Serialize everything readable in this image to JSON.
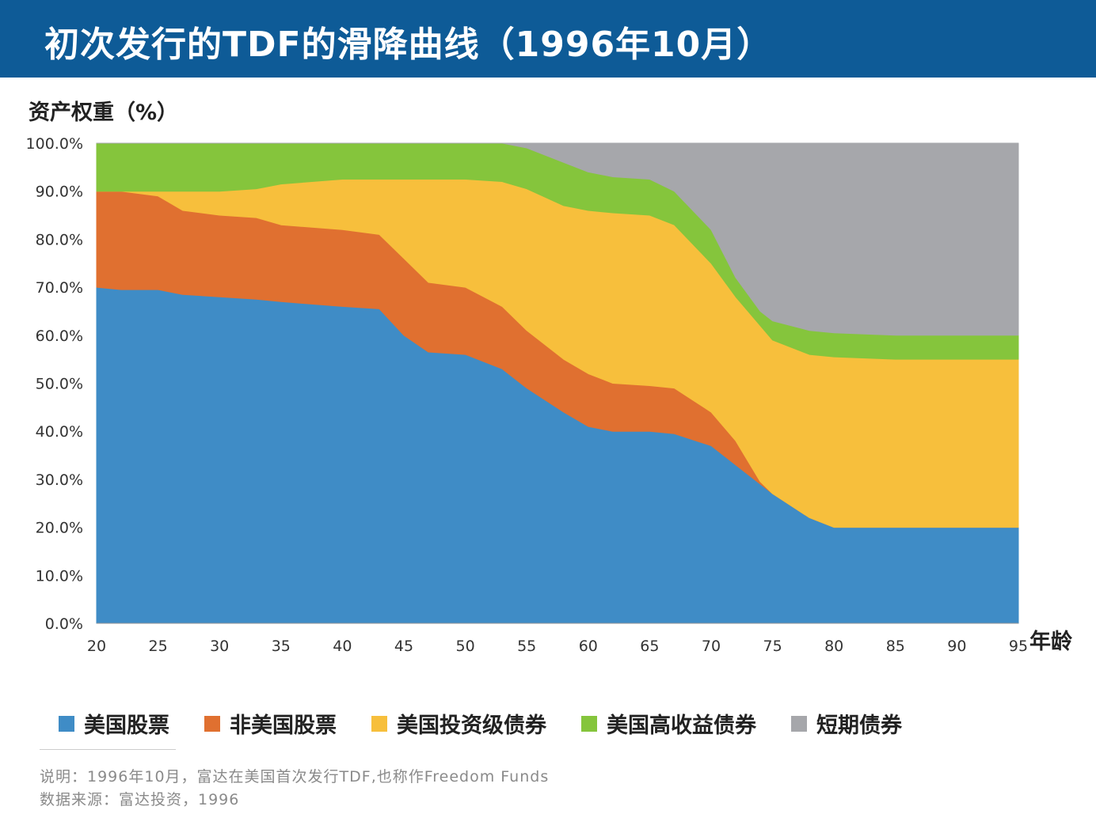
{
  "header": {
    "title": "初次发行的TDF的滑降曲线（1996年10月）"
  },
  "footnotes": {
    "note": "说明：1996年10月，富达在美国首次发行TDF,也称作Freedom Funds",
    "source": "数据来源：富达投资，1996"
  },
  "chart_data": {
    "type": "area",
    "stacked": true,
    "ylabel": "资产权重（%）",
    "xlabel": "年龄",
    "ylim": [
      0,
      100
    ],
    "xlim": [
      20,
      95
    ],
    "yticks": [
      "0.0%",
      "10.0%",
      "20.0%",
      "30.0%",
      "40.0%",
      "50.0%",
      "60.0%",
      "70.0%",
      "80.0%",
      "90.0%",
      "100.0%"
    ],
    "xticks": [
      "20",
      "25",
      "30",
      "35",
      "40",
      "45",
      "50",
      "55",
      "60",
      "65",
      "70",
      "75",
      "80",
      "85",
      "90",
      "95"
    ],
    "legend_position": "bottom",
    "x": [
      20,
      22,
      25,
      27,
      30,
      33,
      35,
      40,
      43,
      45,
      47,
      50,
      53,
      55,
      58,
      60,
      62,
      65,
      67,
      70,
      72,
      74,
      75,
      78,
      80,
      85,
      90,
      95
    ],
    "series": [
      {
        "name": "美国股票",
        "color": "#3f8cc6",
        "values": [
          70,
          69.5,
          69.5,
          68.5,
          68,
          67.5,
          67,
          66,
          65.5,
          60,
          56.5,
          56,
          53,
          49,
          44,
          41,
          40,
          40,
          39.5,
          37,
          33,
          29,
          27,
          22,
          20,
          20,
          20,
          20
        ]
      },
      {
        "name": "非美国股票",
        "color": "#e07030",
        "values": [
          20,
          20.5,
          19.5,
          17.5,
          17,
          17,
          16,
          16,
          15.5,
          16,
          14.5,
          14,
          13,
          12,
          11,
          11,
          10,
          9.5,
          9.5,
          7,
          5,
          0.5,
          0,
          0,
          0,
          0,
          0,
          0
        ]
      },
      {
        "name": "美国投资级债券",
        "color": "#f7bf3c",
        "values": [
          0,
          0,
          1,
          4,
          5,
          6,
          8.5,
          10.5,
          11.5,
          16.5,
          21.5,
          22.5,
          26,
          29.5,
          32,
          34,
          35.5,
          35.5,
          34,
          31,
          30,
          32.5,
          32,
          34,
          35.5,
          35,
          35,
          35
        ]
      },
      {
        "name": "美国高收益债券",
        "color": "#85c53c",
        "values": [
          10,
          10,
          10,
          10,
          10,
          9.5,
          8.5,
          7.5,
          7.5,
          7.5,
          7.5,
          7.5,
          8,
          8.5,
          9,
          8,
          7.5,
          7.5,
          7,
          7,
          4,
          3,
          4,
          5,
          5,
          5,
          5,
          5
        ]
      },
      {
        "name": "短期债券",
        "color": "#a6a7ab",
        "values": [
          0,
          0,
          0,
          0,
          0,
          0,
          0,
          0,
          0,
          0,
          0,
          0,
          0,
          1,
          4,
          6,
          7,
          7.5,
          10,
          18,
          28,
          35,
          37,
          39,
          39.5,
          40,
          40,
          40
        ]
      }
    ]
  }
}
